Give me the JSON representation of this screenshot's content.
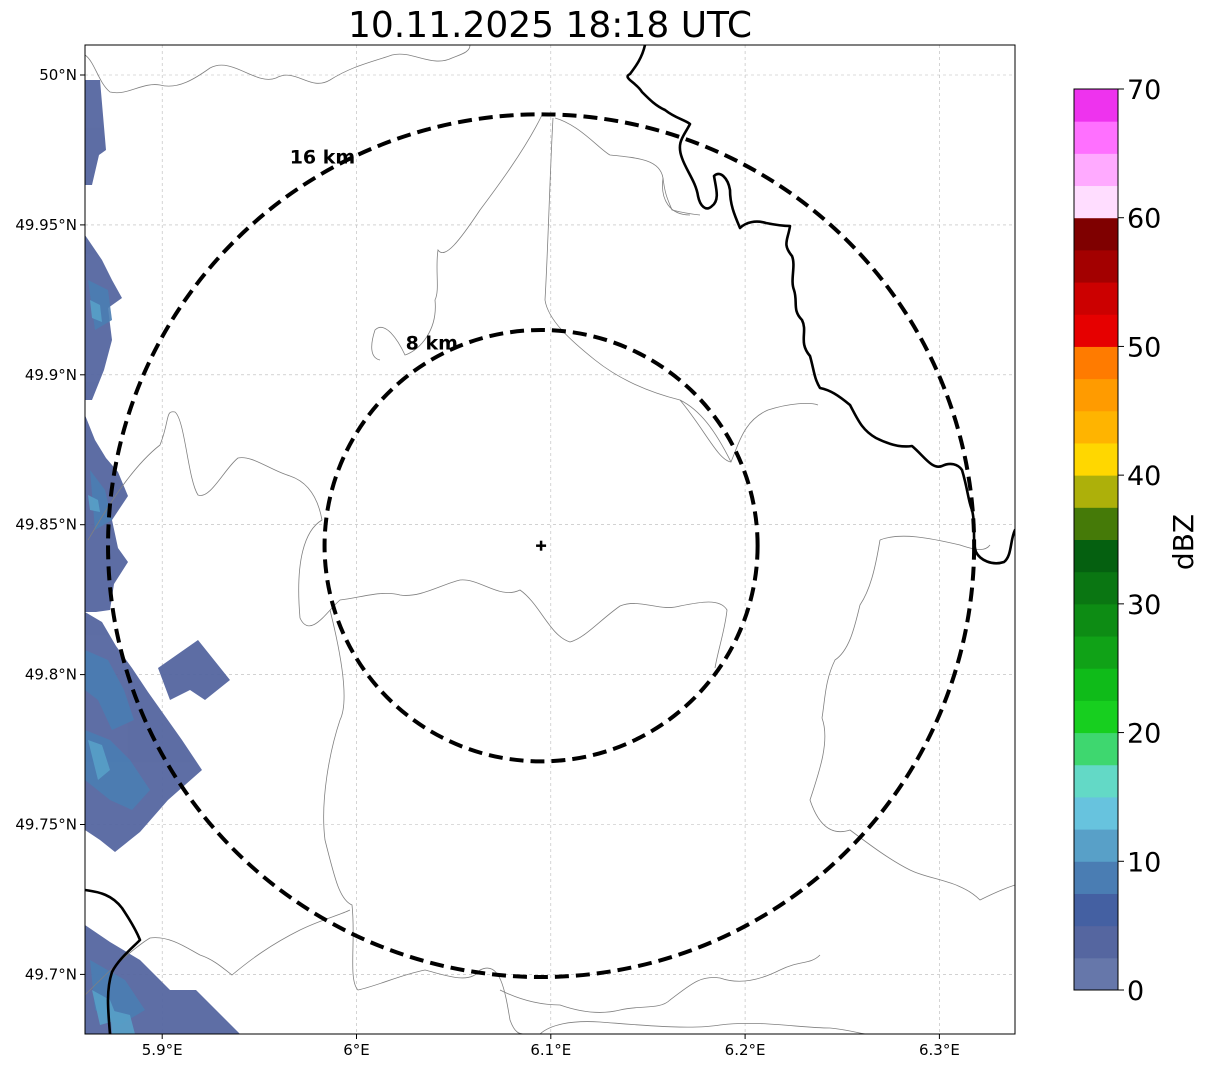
{
  "title": "10.11.2025 18:18 UTC",
  "map": {
    "lon_ticks": [
      {
        "value": 5.9,
        "label": "5.9°E"
      },
      {
        "value": 6.0,
        "label": "6°E"
      },
      {
        "value": 6.1,
        "label": "6.1°E"
      },
      {
        "value": 6.2,
        "label": "6.2°E"
      },
      {
        "value": 6.3,
        "label": "6.3°E"
      }
    ],
    "lat_ticks": [
      {
        "value": 50.0,
        "label": "50°N"
      },
      {
        "value": 49.95,
        "label": "49.95°N"
      },
      {
        "value": 49.9,
        "label": "49.9°N"
      },
      {
        "value": 49.85,
        "label": "49.85°N"
      },
      {
        "value": 49.8,
        "label": "49.8°N"
      },
      {
        "value": 49.75,
        "label": "49.75°N"
      },
      {
        "value": 49.7,
        "label": "49.7°N"
      }
    ],
    "radar_center": {
      "lon": 6.095,
      "lat": 49.843
    },
    "range_rings": [
      {
        "km": 8,
        "label": "8 km"
      },
      {
        "km": 16,
        "label": "16 km"
      }
    ]
  },
  "colorbar": {
    "label": "dBZ",
    "ticks": [
      "0",
      "10",
      "20",
      "30",
      "40",
      "50",
      "60",
      "70"
    ],
    "colors": [
      "#6677aa",
      "#5566a0",
      "#4460a2",
      "#4a7db3",
      "#58a0c8",
      "#67c3de",
      "#63d9c6",
      "#3ed76f",
      "#17cf1f",
      "#0fbb19",
      "#10a217",
      "#0d8c14",
      "#0a7612",
      "#056010",
      "#457a08",
      "#adb00a",
      "#ffd700",
      "#ffb400",
      "#ff9b00",
      "#ff7b00",
      "#e60000",
      "#cc0000",
      "#a30000",
      "#7f0000",
      "#ffddff",
      "#ffaaff",
      "#ff70ff",
      "#ee33ee"
    ]
  }
}
